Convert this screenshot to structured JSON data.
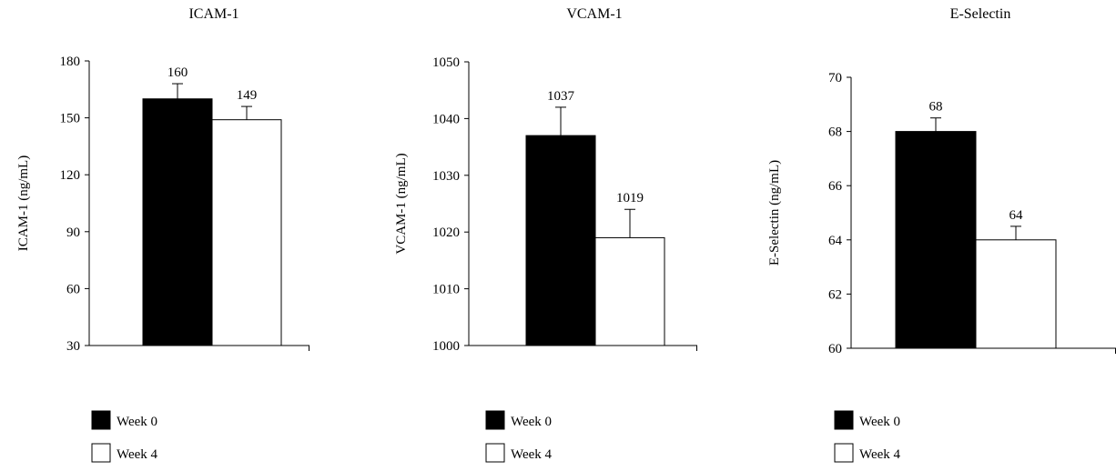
{
  "chart_data": [
    {
      "type": "bar",
      "title": "ICAM-1",
      "ylabel": "ICAM-1 (ng/mL)",
      "ylim": [
        30,
        180
      ],
      "yticks": [
        30,
        60,
        90,
        120,
        150,
        180
      ],
      "series": [
        {
          "name": "Week 0",
          "values": [
            160
          ],
          "errors": [
            8
          ],
          "labels": [
            "160"
          ],
          "color": "#000000"
        },
        {
          "name": "Week 4",
          "values": [
            149
          ],
          "errors": [
            7
          ],
          "labels": [
            "149"
          ],
          "color": "#ffffff"
        }
      ],
      "grid": false,
      "legend": "below"
    },
    {
      "type": "bar",
      "title": "VCAM-1",
      "ylabel": "VCAM-1 (ng/mL)",
      "ylim": [
        1000,
        1050
      ],
      "yticks": [
        1000,
        1010,
        1020,
        1030,
        1040,
        1050
      ],
      "series": [
        {
          "name": "Week 0",
          "values": [
            1037
          ],
          "errors": [
            5
          ],
          "labels": [
            "1037"
          ],
          "color": "#000000"
        },
        {
          "name": "Week 4",
          "values": [
            1019
          ],
          "errors": [
            5
          ],
          "labels": [
            "1019"
          ],
          "color": "#ffffff"
        }
      ],
      "grid": false,
      "legend": "below"
    },
    {
      "type": "bar",
      "title": "E-Selectin",
      "ylabel": "E-Selectin (ng/mL)",
      "ylim": [
        60,
        70
      ],
      "yticks": [
        60,
        62,
        64,
        66,
        68,
        70
      ],
      "series": [
        {
          "name": "Week 0",
          "values": [
            68
          ],
          "errors": [
            0.5
          ],
          "labels": [
            "68"
          ],
          "color": "#000000"
        },
        {
          "name": "Week 4",
          "values": [
            64
          ],
          "errors": [
            0.5
          ],
          "labels": [
            "64"
          ],
          "color": "#ffffff"
        }
      ],
      "grid": false,
      "legend": "below"
    }
  ]
}
